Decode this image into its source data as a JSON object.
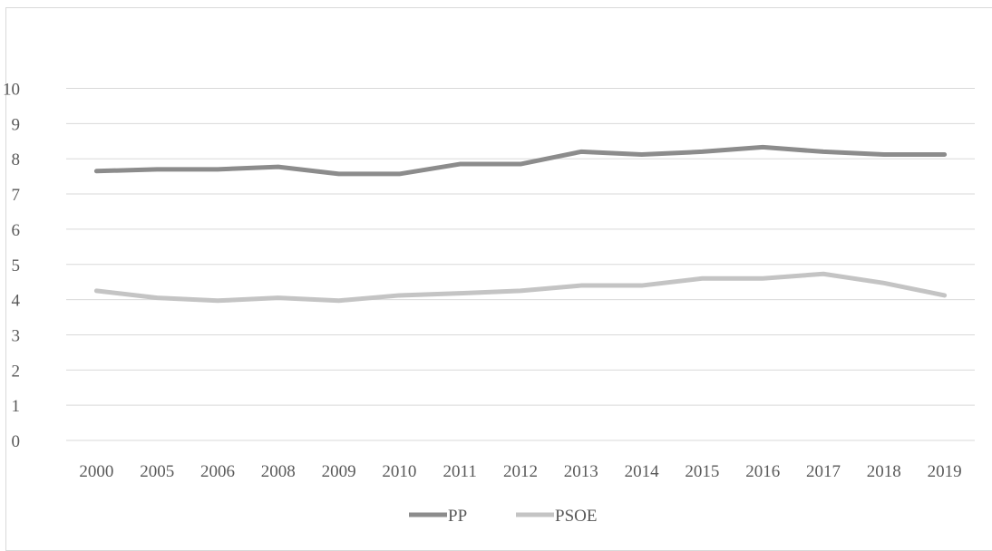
{
  "chart_data": {
    "type": "line",
    "title": "",
    "xlabel": "",
    "ylabel": "",
    "categories": [
      "2000",
      "2005",
      "2006",
      "2008",
      "2009",
      "2010",
      "2011",
      "2012",
      "2013",
      "2014",
      "2015",
      "2016",
      "2017",
      "2018",
      "2019"
    ],
    "ylim": [
      0,
      10
    ],
    "yticks": [
      0,
      1,
      2,
      3,
      4,
      5,
      6,
      7,
      8,
      9,
      10
    ],
    "grid": true,
    "legend_position": "bottom",
    "series": [
      {
        "name": "PP",
        "color": "#8c8c8c",
        "values": [
          7.65,
          7.7,
          7.7,
          7.77,
          7.57,
          7.57,
          7.85,
          7.85,
          8.2,
          8.12,
          8.2,
          8.33,
          8.2,
          8.12,
          8.12
        ]
      },
      {
        "name": "PSOE",
        "color": "#c4c4c4",
        "values": [
          4.25,
          4.05,
          3.97,
          4.05,
          3.97,
          4.12,
          4.18,
          4.25,
          4.4,
          4.4,
          4.6,
          4.6,
          4.73,
          4.47,
          4.12
        ]
      }
    ]
  }
}
